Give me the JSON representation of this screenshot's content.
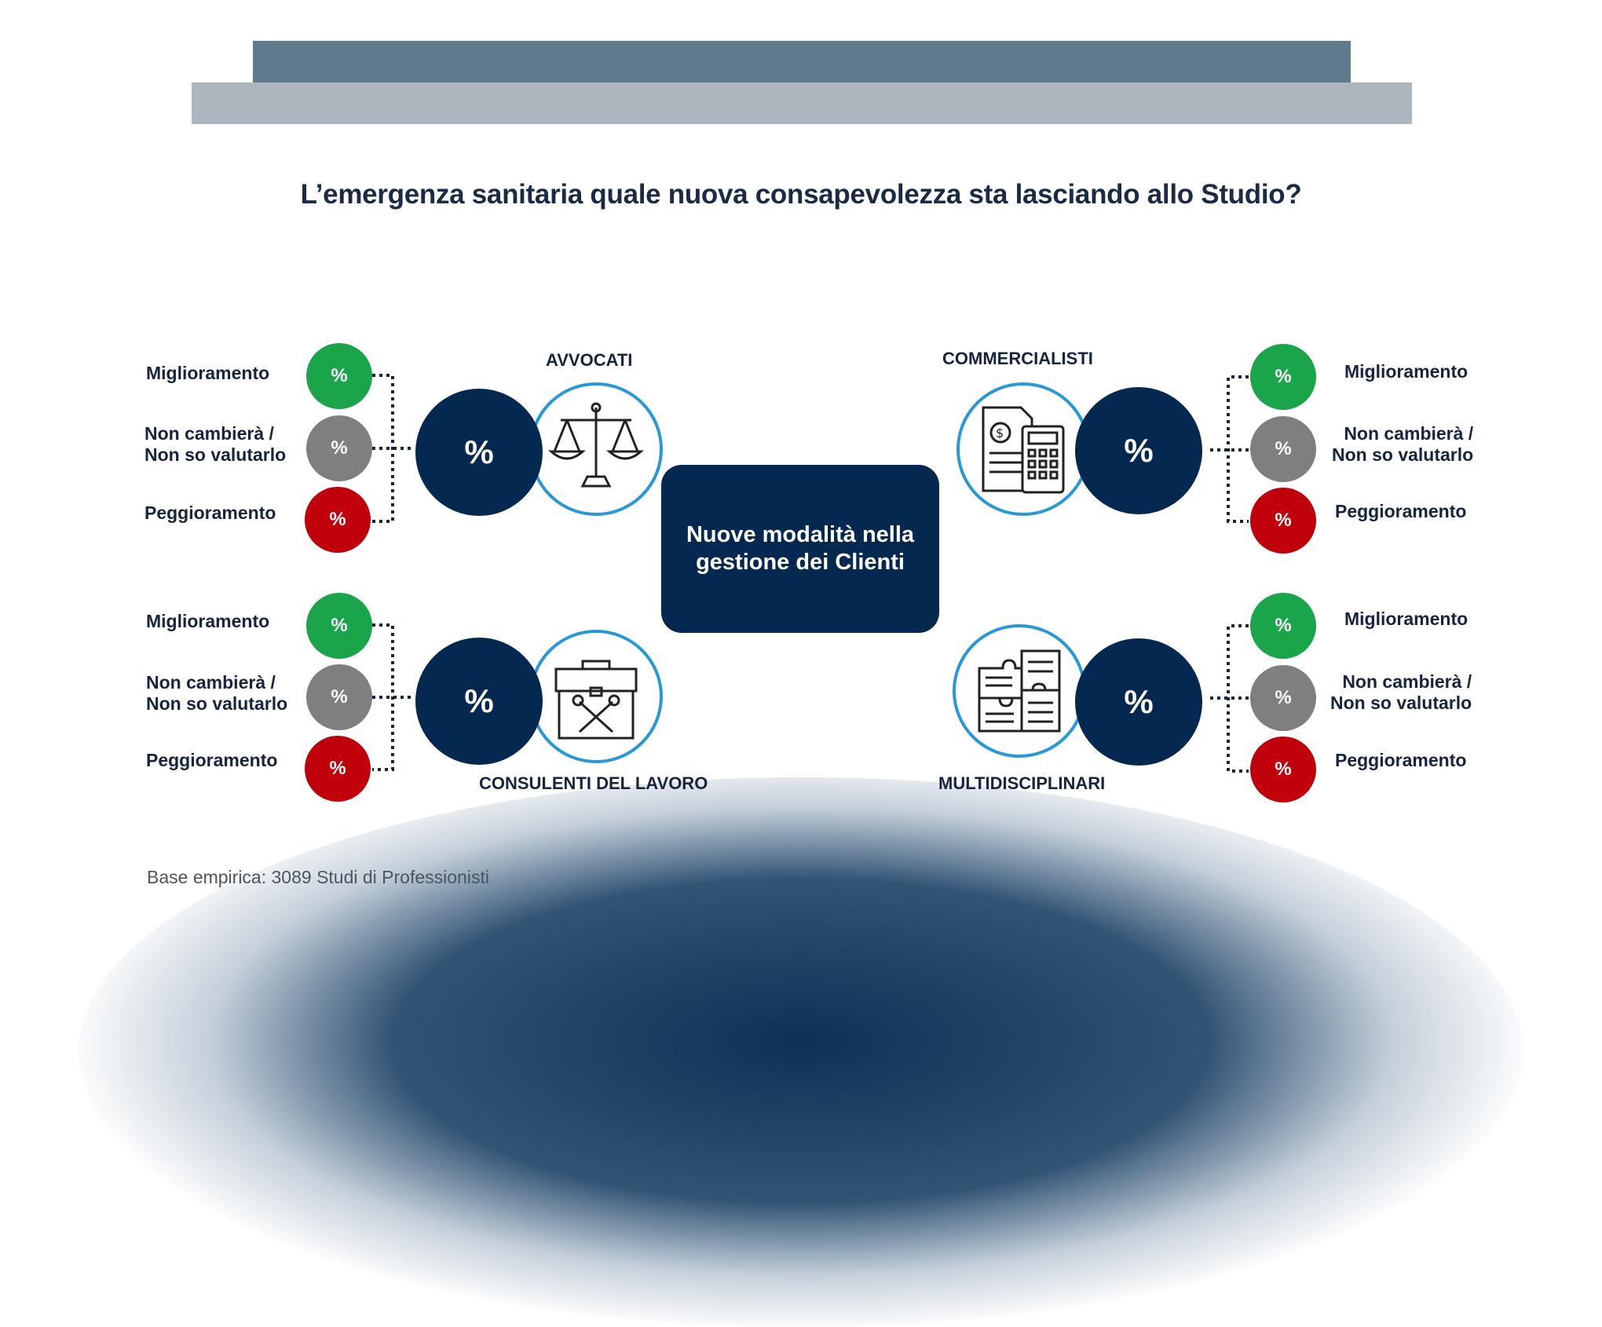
{
  "header": {
    "title": "L’emergenza sanitaria quale nuova consapevolezza sta lasciando allo Studio?"
  },
  "center": {
    "label": "Nuove modalità nella gestione dei Clienti"
  },
  "groups": [
    {
      "category": "AVVOCATI",
      "icon": "scales-icon",
      "main_value": "%",
      "options": [
        {
          "label": "Miglioramento",
          "value": "%",
          "color": "#1aa54a"
        },
        {
          "label_line1": "Non cambierà /",
          "label_line2": "Non so valutarlo",
          "value": "%",
          "color": "#7f7f7f"
        },
        {
          "label": "Peggioramento",
          "value": "%",
          "color": "#c0000b"
        }
      ]
    },
    {
      "category": "COMMERCIALISTI",
      "icon": "calculator-document-icon",
      "main_value": "%",
      "options": [
        {
          "label": "Miglioramento",
          "value": "%",
          "color": "#1aa54a"
        },
        {
          "label_line1": "Non cambierà /",
          "label_line2": "Non so valutarlo",
          "value": "%",
          "color": "#7f7f7f"
        },
        {
          "label": "Peggioramento",
          "value": "%",
          "color": "#c0000b"
        }
      ]
    },
    {
      "category": "CONSULENTI DEL LAVORO",
      "icon": "toolbox-icon",
      "main_value": "%",
      "options": [
        {
          "label": "Miglioramento",
          "value": "%",
          "color": "#1aa54a"
        },
        {
          "label_line1": "Non cambierà /",
          "label_line2": "Non so valutarlo",
          "value": "%",
          "color": "#7f7f7f"
        },
        {
          "label": "Peggioramento",
          "value": "%",
          "color": "#c0000b"
        }
      ]
    },
    {
      "category": "MULTIDISCIPLINARI",
      "icon": "puzzle-documents-icon",
      "main_value": "%",
      "options": [
        {
          "label": "Miglioramento",
          "value": "%",
          "color": "#1aa54a"
        },
        {
          "label_line1": "Non cambierà /",
          "label_line2": "Non so valutarlo",
          "value": "%",
          "color": "#7f7f7f"
        },
        {
          "label": "Peggioramento",
          "value": "%",
          "color": "#c0000b"
        }
      ]
    }
  ],
  "footnote": "Base empirica: 3089 Studi di Professionisti",
  "colors": {
    "navy": "#04284f",
    "accent_blue": "#2898d6",
    "header_bar_dark": "#5e7a8c",
    "header_bar_light": "#adb5bf"
  }
}
